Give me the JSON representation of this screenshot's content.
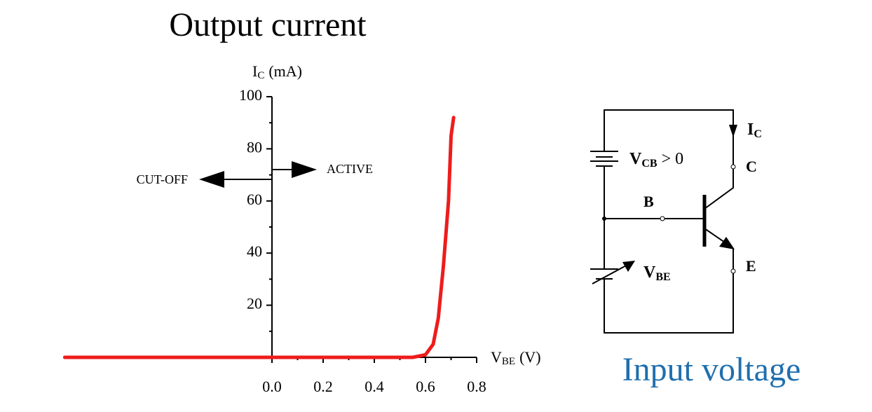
{
  "chart_data": {
    "type": "line",
    "title": "Output current",
    "x_label": {
      "main": "V",
      "sub": "BE",
      "unit": "(V)"
    },
    "y_label": {
      "main": "I",
      "sub": "C",
      "unit": "(mA)"
    },
    "x": [
      -0.81,
      0.55,
      0.6,
      0.63,
      0.65,
      0.67,
      0.69,
      0.7,
      0.71
    ],
    "series": [
      {
        "color": "#ee1c1c",
        "values": [
          0,
          0,
          1,
          5,
          15,
          35,
          60,
          85,
          92
        ]
      }
    ],
    "xlim": [
      -0.81,
      0.8
    ],
    "ylim": [
      0,
      100
    ],
    "xticks": [
      {
        "value": 0,
        "label": "0.0"
      },
      0.2,
      0.4,
      0.6,
      0.8
    ],
    "yticks": [
      20,
      40,
      60,
      80,
      100
    ],
    "annotations": [
      "CUT-OFF",
      "ACTIVE"
    ]
  },
  "diagram": {
    "vcb": {
      "main": "V",
      "sub": "CB",
      "rest": " > 0"
    },
    "vbe": {
      "main": "V",
      "sub": "BE"
    },
    "ic": {
      "main": "I",
      "sub": "C"
    },
    "collector": "C",
    "base": "B",
    "emitter": "E",
    "caption": "Input voltage"
  }
}
